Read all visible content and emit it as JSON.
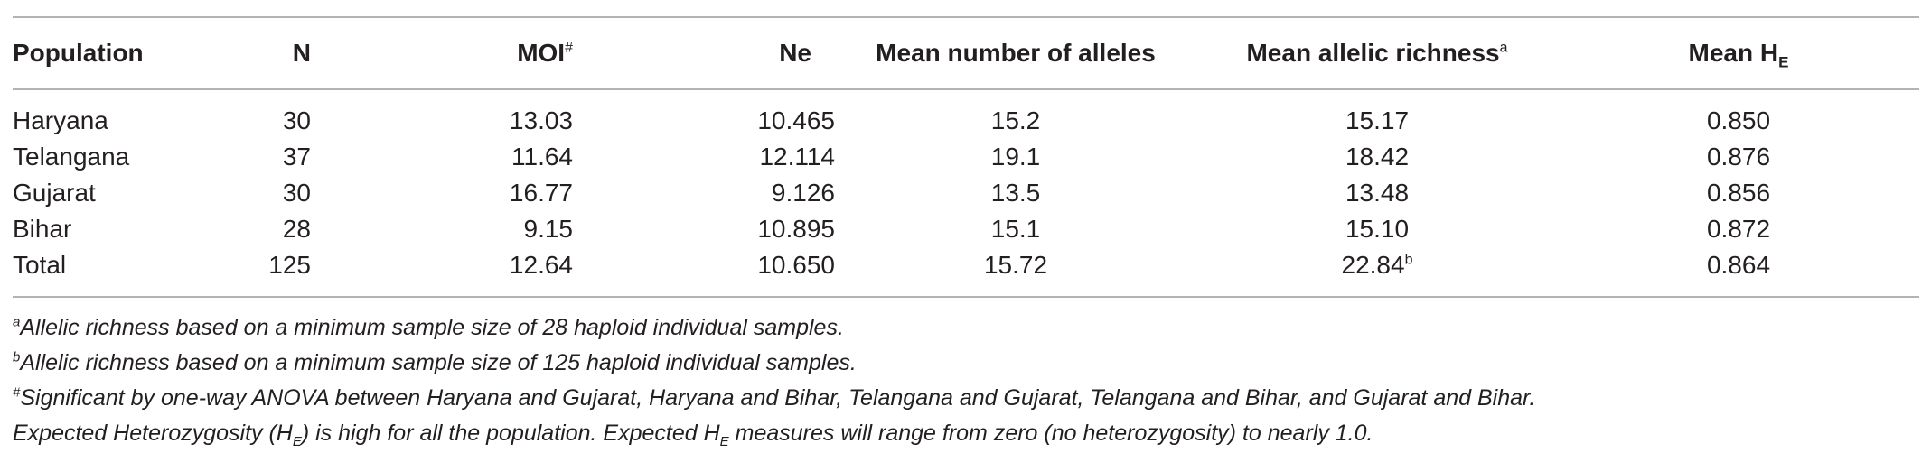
{
  "table": {
    "headers": {
      "population": "Population",
      "n": "N",
      "moi": "MOI",
      "moi_mark": "#",
      "ne": "Ne",
      "mean_alleles": "Mean number of alleles",
      "mean_richness": "Mean allelic richness",
      "mean_richness_mark": "a",
      "mean_he": "Mean H",
      "mean_he_sub": "E"
    },
    "rows": [
      {
        "population": "Haryana",
        "n": "30",
        "moi": "13.03",
        "ne": "10.465",
        "mean_alleles": "15.2",
        "mean_richness": "15.17",
        "mean_richness_mark": "",
        "mean_he": "0.850"
      },
      {
        "population": "Telangana",
        "n": "37",
        "moi": "11.64",
        "ne": "12.114",
        "mean_alleles": "19.1",
        "mean_richness": "18.42",
        "mean_richness_mark": "",
        "mean_he": "0.876"
      },
      {
        "population": "Gujarat",
        "n": "30",
        "moi": "16.77",
        "ne": "9.126",
        "mean_alleles": "13.5",
        "mean_richness": "13.48",
        "mean_richness_mark": "",
        "mean_he": "0.856"
      },
      {
        "population": "Bihar",
        "n": "28",
        "moi": "9.15",
        "ne": "10.895",
        "mean_alleles": "15.1",
        "mean_richness": "15.10",
        "mean_richness_mark": "",
        "mean_he": "0.872"
      },
      {
        "population": "Total",
        "n": "125",
        "moi": "12.64",
        "ne": "10.650",
        "mean_alleles": "15.72",
        "mean_richness": "22.84",
        "mean_richness_mark": "b",
        "mean_he": "0.864"
      }
    ]
  },
  "footnotes": {
    "a_mark": "a",
    "a_text": "Allelic richness based on a minimum sample size of 28 haploid individual samples.",
    "b_mark": "b",
    "b_text": "Allelic richness based on a minimum sample size of 125 haploid individual samples.",
    "hash_mark": "#",
    "hash_text": "Significant by one-way ANOVA between Haryana and Gujarat, Haryana and Bihar, Telangana and Gujarat, Telangana and Bihar, and Gujarat and Bihar.",
    "he_part1": "Expected Heterozygosity (H",
    "he_sub1": "E",
    "he_part2": ") is high for all the population. Expected H",
    "he_sub2": "E",
    "he_part3": " measures will range from zero (no heterozygosity) to nearly 1.0."
  }
}
